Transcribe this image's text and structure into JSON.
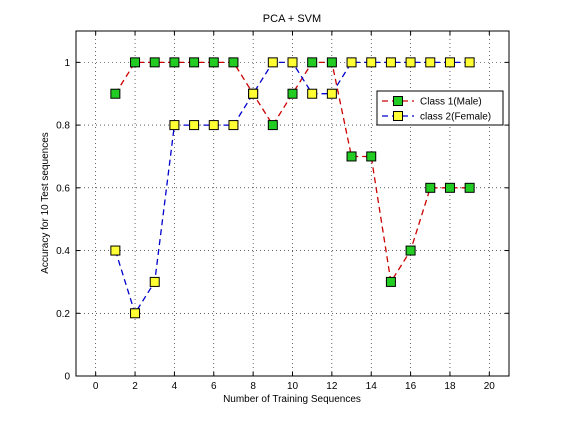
{
  "chart_data": {
    "type": "line",
    "title": "PCA + SVM",
    "xlabel": "Number of Training Sequences",
    "ylabel": "Accuracy for 10 Test sequences",
    "xlim": [
      -1,
      21
    ],
    "ylim": [
      0,
      1.1
    ],
    "xticks": [
      0,
      2,
      4,
      6,
      8,
      10,
      12,
      14,
      16,
      18,
      20
    ],
    "yticks": [
      0,
      0.2,
      0.4,
      0.6,
      0.8,
      1
    ],
    "xtick_labels": [
      "0",
      "2",
      "4",
      "6",
      "8",
      "10",
      "12",
      "14",
      "16",
      "18",
      "20"
    ],
    "ytick_labels": [
      "0",
      "0.2",
      "0.4",
      "0.6",
      "0.8",
      "1"
    ],
    "grid": true,
    "legend_position": "top-right",
    "series": [
      {
        "name": "Class 1(Male)",
        "line_color": "#cc0000",
        "marker_color": "#22cc22",
        "x": [
          1,
          2,
          3,
          4,
          5,
          6,
          7,
          8,
          9,
          10,
          11,
          12,
          13,
          14,
          15,
          16,
          17,
          18,
          19
        ],
        "values": [
          0.9,
          1,
          1,
          1,
          1,
          1,
          1,
          0.9,
          0.8,
          0.9,
          1,
          1,
          0.7,
          0.7,
          0.3,
          0.4,
          0.6,
          0.6,
          0.6
        ]
      },
      {
        "name": "class 2(Female)",
        "line_color": "#0000cc",
        "marker_color": "#ffff33",
        "x": [
          1,
          2,
          3,
          4,
          5,
          6,
          7,
          8,
          9,
          10,
          11,
          12,
          13,
          14,
          15,
          16,
          17,
          18,
          19
        ],
        "values": [
          0.4,
          0.2,
          0.3,
          0.8,
          0.8,
          0.8,
          0.8,
          0.9,
          1,
          1,
          0.9,
          0.9,
          1,
          1,
          1,
          1,
          1,
          1,
          1
        ]
      }
    ]
  }
}
